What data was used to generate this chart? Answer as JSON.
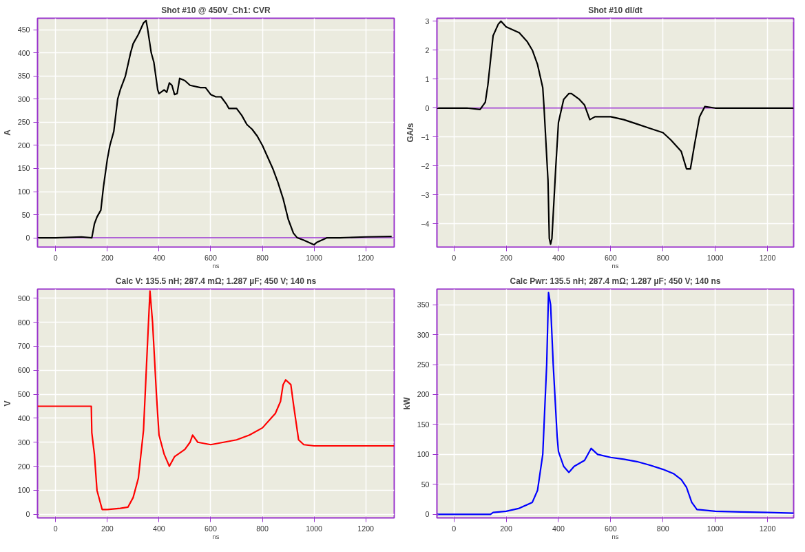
{
  "chart_data": [
    {
      "type": "line",
      "title": "Shot #10 @ 450V_Ch1: CVR",
      "xlabel": "ns",
      "ylabel": "A",
      "xlim": [
        -70,
        1310
      ],
      "ylim": [
        -20,
        475
      ],
      "xticks": [
        0,
        200,
        400,
        600,
        800,
        1000,
        1200
      ],
      "yticks": [
        0,
        50,
        100,
        150,
        200,
        250,
        300,
        350,
        400,
        450
      ],
      "grid": true,
      "ref_lines": [
        {
          "axis": "y",
          "value": 0,
          "label": null,
          "color": "#9933cc"
        }
      ],
      "series": [
        {
          "color": "#000000",
          "x": [
            -70,
            0,
            100,
            140,
            150,
            160,
            175,
            185,
            200,
            210,
            225,
            240,
            250,
            270,
            290,
            300,
            320,
            340,
            350,
            355,
            370,
            380,
            395,
            400,
            420,
            430,
            440,
            450,
            460,
            470,
            480,
            500,
            520,
            560,
            580,
            600,
            620,
            640,
            660,
            670,
            700,
            720,
            740,
            760,
            780,
            800,
            820,
            840,
            860,
            880,
            900,
            920,
            935,
            960,
            1000,
            1010,
            1050,
            1100,
            1200,
            1300
          ],
          "values": [
            0,
            0,
            2,
            0,
            30,
            45,
            60,
            110,
            170,
            200,
            230,
            300,
            320,
            350,
            400,
            420,
            440,
            465,
            470,
            455,
            400,
            380,
            320,
            312,
            320,
            315,
            335,
            330,
            310,
            312,
            345,
            340,
            330,
            325,
            325,
            310,
            305,
            305,
            290,
            280,
            280,
            265,
            245,
            235,
            220,
            200,
            175,
            150,
            120,
            85,
            40,
            10,
            0,
            -5,
            -15,
            -10,
            0,
            0,
            2,
            3
          ]
        }
      ]
    },
    {
      "type": "line",
      "title": "Shot #10 dI/dt",
      "xlabel": "ns",
      "ylabel": "GA/s",
      "xlim": [
        -65,
        1300
      ],
      "ylim": [
        -4.8,
        3.1
      ],
      "xticks": [
        0,
        200,
        400,
        600,
        800,
        1000,
        1200
      ],
      "yticks": [
        -4,
        -3,
        -2,
        -1,
        0,
        1,
        2,
        3
      ],
      "grid": true,
      "ref_lines": [
        {
          "axis": "y",
          "value": 0,
          "label": null,
          "color": "#9933cc"
        }
      ],
      "series": [
        {
          "color": "#000000",
          "x": [
            -65,
            50,
            100,
            120,
            130,
            150,
            170,
            180,
            200,
            250,
            280,
            300,
            320,
            340,
            345,
            360,
            365,
            370,
            375,
            390,
            400,
            420,
            440,
            450,
            480,
            500,
            520,
            540,
            600,
            650,
            700,
            750,
            800,
            830,
            870,
            890,
            905,
            920,
            940,
            960,
            1000,
            1100,
            1200,
            1300
          ],
          "values": [
            0,
            0,
            -0.05,
            0.2,
            0.8,
            2.5,
            2.9,
            3.0,
            2.8,
            2.6,
            2.3,
            2.0,
            1.5,
            0.7,
            0,
            -2.5,
            -4.5,
            -4.7,
            -4.5,
            -2.0,
            -0.5,
            0.3,
            0.5,
            0.5,
            0.3,
            0.1,
            -0.4,
            -0.3,
            -0.3,
            -0.4,
            -0.55,
            -0.7,
            -0.85,
            -1.1,
            -1.5,
            -2.1,
            -2.1,
            -1.3,
            -0.3,
            0.05,
            0,
            0,
            0,
            0
          ]
        }
      ]
    },
    {
      "type": "line",
      "title": "Calc V: 135.5 nH; 287.4 mΩ; 1.287 µF; 450 V; 140 ns",
      "xlabel": "ns",
      "ylabel": "V",
      "xlim": [
        -70,
        1310
      ],
      "ylim": [
        -15,
        938
      ],
      "xticks": [
        0,
        200,
        400,
        600,
        800,
        1000,
        1200
      ],
      "yticks": [
        0,
        100,
        200,
        300,
        400,
        500,
        600,
        700,
        800,
        900
      ],
      "grid": true,
      "series": [
        {
          "color": "#ff0000",
          "x": [
            -70,
            138,
            140,
            150,
            160,
            180,
            200,
            250,
            280,
            300,
            320,
            340,
            355,
            365,
            375,
            390,
            400,
            420,
            440,
            460,
            500,
            520,
            530,
            550,
            600,
            650,
            700,
            750,
            800,
            850,
            870,
            880,
            890,
            910,
            920,
            940,
            960,
            1000,
            1100,
            1200,
            1310
          ],
          "values": [
            450,
            450,
            340,
            250,
            100,
            20,
            20,
            25,
            30,
            70,
            150,
            350,
            700,
            930,
            800,
            500,
            330,
            250,
            200,
            240,
            270,
            300,
            330,
            300,
            290,
            300,
            310,
            330,
            360,
            420,
            470,
            540,
            560,
            540,
            460,
            310,
            290,
            285,
            285,
            285,
            285
          ]
        }
      ]
    },
    {
      "type": "line",
      "title": "Calc Pwr: 135.5 nH; 287.4 mΩ; 1.287 µF; 450 V; 140 ns",
      "xlabel": "ns",
      "ylabel": "kW",
      "xlim": [
        -65,
        1300
      ],
      "ylim": [
        -6,
        376
      ],
      "xticks": [
        0,
        200,
        400,
        600,
        800,
        1000,
        1200
      ],
      "yticks": [
        0,
        50,
        100,
        150,
        200,
        250,
        300,
        350
      ],
      "grid": true,
      "series": [
        {
          "color": "#0000ff",
          "x": [
            -65,
            140,
            150,
            200,
            250,
            300,
            320,
            340,
            355,
            362,
            370,
            380,
            395,
            400,
            420,
            440,
            460,
            500,
            525,
            550,
            600,
            650,
            700,
            750,
            800,
            840,
            870,
            890,
            910,
            930,
            1000,
            1100,
            1200,
            1300
          ],
          "values": [
            0,
            0,
            3,
            5,
            10,
            20,
            40,
            100,
            250,
            370,
            350,
            250,
            130,
            105,
            80,
            70,
            80,
            90,
            110,
            100,
            95,
            92,
            88,
            82,
            75,
            68,
            58,
            45,
            20,
            8,
            5,
            4,
            3,
            2
          ]
        }
      ]
    }
  ]
}
